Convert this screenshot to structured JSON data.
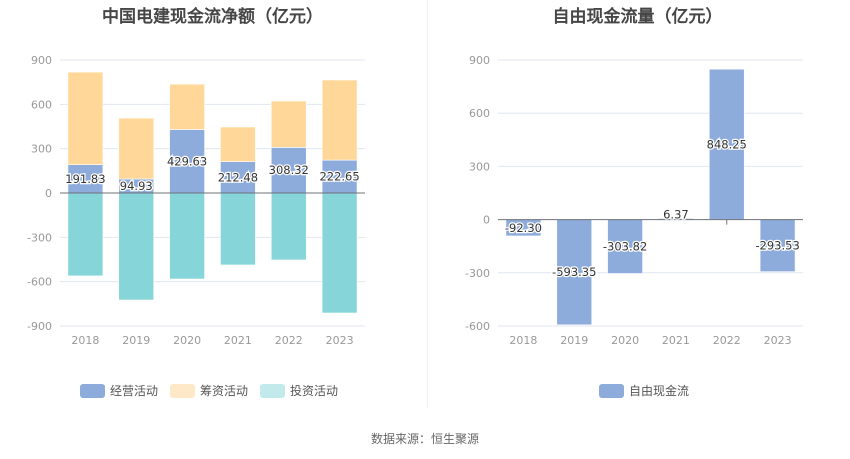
{
  "chart_data": [
    {
      "type": "bar",
      "stacked": true,
      "title": "中国电建现金流净额（亿元）",
      "categories": [
        "2018",
        "2019",
        "2020",
        "2021",
        "2022",
        "2023"
      ],
      "yticks": [
        "900",
        "600",
        "300",
        "0",
        "-300",
        "-600",
        "-900"
      ],
      "ylim": [
        -900,
        900
      ],
      "grid": true,
      "legend_position": "bottom",
      "series": [
        {
          "name": "经营活动",
          "color": "#8eacdb",
          "values": [
            191.83,
            94.93,
            429.63,
            212.48,
            308.32,
            222.65
          ],
          "labels": [
            "191.83",
            "94.93",
            "429.63",
            "212.48",
            "308.32",
            "222.65"
          ]
        },
        {
          "name": "筹资活动",
          "color": "#ffd799",
          "legend_color": "#fde8c8",
          "values": [
            626,
            412,
            307,
            234,
            314,
            542
          ]
        },
        {
          "name": "投资活动",
          "color": "#86d5d8",
          "legend_color": "#c2eaec",
          "values": [
            -561,
            -724,
            -582,
            -487,
            -453,
            -812
          ]
        }
      ]
    },
    {
      "type": "bar",
      "title": "自由现金流量（亿元）",
      "categories": [
        "2018",
        "2019",
        "2020",
        "2021",
        "2022",
        "2023"
      ],
      "yticks": [
        "900",
        "600",
        "300",
        "0",
        "-300",
        "-600"
      ],
      "ylim": [
        -600,
        900
      ],
      "grid": true,
      "legend_position": "bottom",
      "series": [
        {
          "name": "自由现金流",
          "color": "#8eacdb",
          "values": [
            -92.3,
            -593.35,
            -303.82,
            6.37,
            848.25,
            -293.53
          ],
          "labels": [
            "-92.30",
            "-593.35",
            "-303.82",
            "6.37",
            "848.25",
            "-293.53"
          ]
        }
      ]
    }
  ],
  "footer": {
    "source": "数据来源：恒生聚源"
  }
}
